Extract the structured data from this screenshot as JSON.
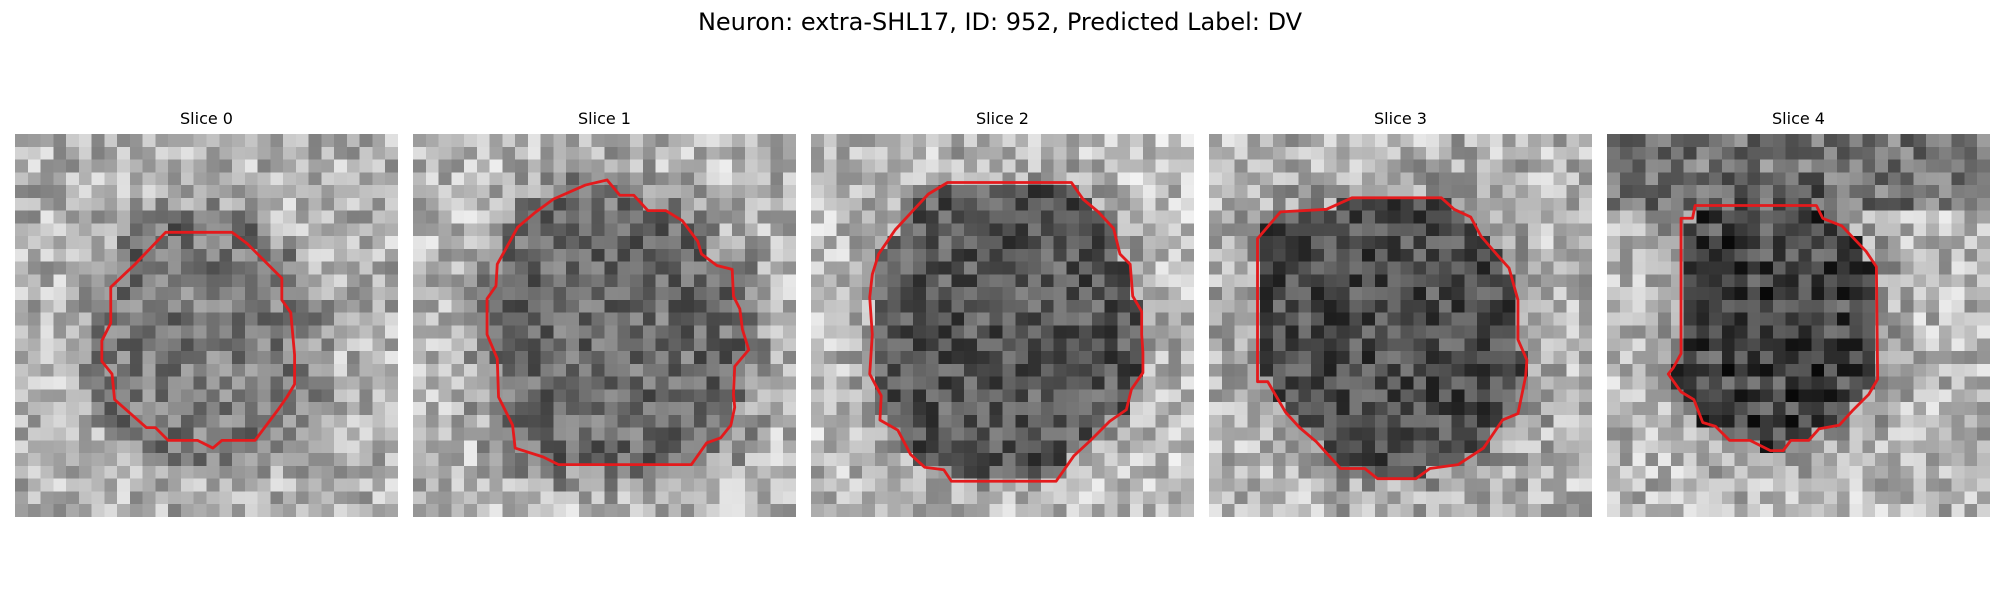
{
  "figure": {
    "title": "Neuron: extra-SHL17, ID: 952, Predicted Label: DV",
    "outline_color": "#e41a1c",
    "panels": [
      {
        "title": "Slice 0"
      },
      {
        "title": "Slice 1"
      },
      {
        "title": "Slice 2"
      },
      {
        "title": "Slice 3"
      },
      {
        "title": "Slice 4"
      }
    ]
  }
}
